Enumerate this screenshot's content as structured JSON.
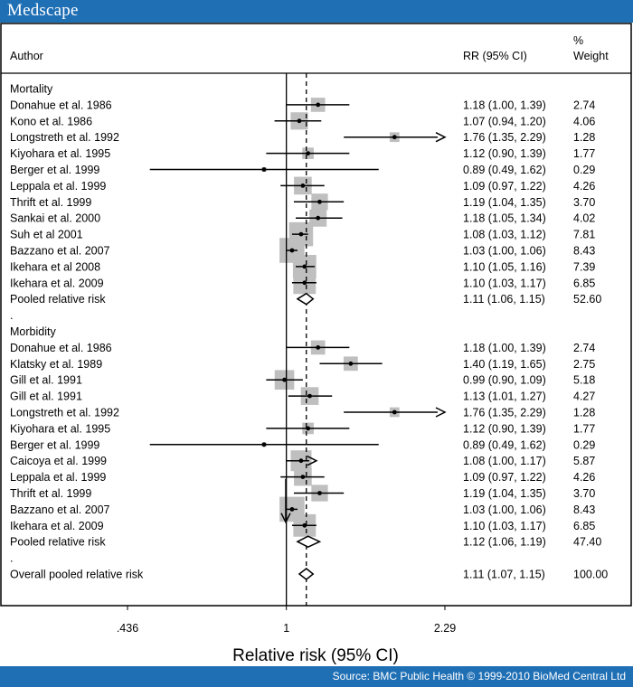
{
  "brand": {
    "logo": "Medscape",
    "source": "Source: BMC Public Health © 1999-2010 BioMed Central Ltd"
  },
  "colors": {
    "header": "#1f6fb5",
    "box": "#bfbfbf",
    "line": "#000000"
  },
  "chart_data": {
    "type": "forest",
    "xscale": "log",
    "xlim": [
      0.436,
      2.29
    ],
    "xticks": [
      ".436",
      "1",
      "2.29"
    ],
    "xlabel": "Relative risk (95% CI)",
    "null_value": 1,
    "overall_value": 1.11,
    "headers": {
      "author": "Author",
      "rr": "RR (95% CI)",
      "weight_top": "%",
      "weight": "Weight"
    },
    "rows": [
      {
        "kind": "group",
        "label": "Mortality"
      },
      {
        "kind": "study",
        "label": "Donahue et al. 1986",
        "rr": 1.18,
        "lo": 1.0,
        "hi": 1.39,
        "ci_text": "1.18 (1.00, 1.39)",
        "weight": "2.74"
      },
      {
        "kind": "study",
        "label": "Kono et al. 1986",
        "rr": 1.07,
        "lo": 0.94,
        "hi": 1.2,
        "ci_text": "1.07 (0.94, 1.20)",
        "weight": "4.06"
      },
      {
        "kind": "study",
        "label": "Longstreth et al. 1992",
        "rr": 1.76,
        "lo": 1.35,
        "hi": 2.29,
        "ci_text": "1.76 (1.35, 2.29)",
        "weight": "1.28",
        "arrow": "right"
      },
      {
        "kind": "study",
        "label": "Kiyohara et al. 1995",
        "rr": 1.12,
        "lo": 0.9,
        "hi": 1.39,
        "ci_text": "1.12 (0.90, 1.39)",
        "weight": "1.77"
      },
      {
        "kind": "study",
        "label": "Berger et al. 1999",
        "rr": 0.89,
        "lo": 0.49,
        "hi": 1.62,
        "ci_text": "0.89 (0.49, 1.62)",
        "weight": "0.29"
      },
      {
        "kind": "study",
        "label": "Leppala et al. 1999",
        "rr": 1.09,
        "lo": 0.97,
        "hi": 1.22,
        "ci_text": "1.09 (0.97, 1.22)",
        "weight": "4.26"
      },
      {
        "kind": "study",
        "label": "Thrift et al. 1999",
        "rr": 1.19,
        "lo": 1.04,
        "hi": 1.35,
        "ci_text": "1.19 (1.04, 1.35)",
        "weight": "3.70"
      },
      {
        "kind": "study",
        "label": "Sankai et al. 2000",
        "rr": 1.18,
        "lo": 1.05,
        "hi": 1.34,
        "ci_text": "1.18 (1.05, 1.34)",
        "weight": "4.02"
      },
      {
        "kind": "study",
        "label": "Suh et al 2001",
        "rr": 1.08,
        "lo": 1.03,
        "hi": 1.12,
        "ci_text": "1.08 (1.03, 1.12)",
        "weight": "7.81"
      },
      {
        "kind": "study",
        "label": "Bazzano et al. 2007",
        "rr": 1.03,
        "lo": 1.0,
        "hi": 1.06,
        "ci_text": "1.03 (1.00, 1.06)",
        "weight": "8.43"
      },
      {
        "kind": "study",
        "label": "Ikehara et al 2008",
        "rr": 1.1,
        "lo": 1.05,
        "hi": 1.16,
        "ci_text": "1.10 (1.05, 1.16)",
        "weight": "7.39"
      },
      {
        "kind": "study",
        "label": "Ikehara et al. 2009",
        "rr": 1.1,
        "lo": 1.03,
        "hi": 1.17,
        "ci_text": "1.10 (1.03, 1.17)",
        "weight": "6.85"
      },
      {
        "kind": "pooled",
        "label": "Pooled relative risk",
        "rr": 1.11,
        "lo": 1.06,
        "hi": 1.15,
        "ci_text": "1.11 (1.06, 1.15)",
        "weight": "52.60"
      },
      {
        "kind": "sep",
        "label": "."
      },
      {
        "kind": "group",
        "label": "Morbidity"
      },
      {
        "kind": "study",
        "label": "Donahue et al. 1986",
        "rr": 1.18,
        "lo": 1.0,
        "hi": 1.39,
        "ci_text": "1.18 (1.00, 1.39)",
        "weight": "2.74"
      },
      {
        "kind": "study",
        "label": "Klatsky et al. 1989",
        "rr": 1.4,
        "lo": 1.19,
        "hi": 1.65,
        "ci_text": "1.40 (1.19, 1.65)",
        "weight": "2.75"
      },
      {
        "kind": "study",
        "label": "Gill et al. 1991",
        "rr": 0.99,
        "lo": 0.9,
        "hi": 1.09,
        "ci_text": "0.99 (0.90, 1.09)",
        "weight": "5.18"
      },
      {
        "kind": "study",
        "label": "Gill et al. 1991",
        "rr": 1.13,
        "lo": 1.01,
        "hi": 1.27,
        "ci_text": "1.13 (1.01, 1.27)",
        "weight": "4.27"
      },
      {
        "kind": "study",
        "label": "Longstreth et al. 1992",
        "rr": 1.76,
        "lo": 1.35,
        "hi": 2.29,
        "ci_text": "1.76 (1.35, 2.29)",
        "weight": "1.28",
        "arrow": "right"
      },
      {
        "kind": "study",
        "label": "Kiyohara et al. 1995",
        "rr": 1.12,
        "lo": 0.9,
        "hi": 1.39,
        "ci_text": "1.12 (0.90, 1.39)",
        "weight": "1.77"
      },
      {
        "kind": "study",
        "label": "Berger et al. 1999",
        "rr": 0.89,
        "lo": 0.49,
        "hi": 1.62,
        "ci_text": "0.89 (0.49, 1.62)",
        "weight": "0.29"
      },
      {
        "kind": "study",
        "label": "Caicoya et al. 1999",
        "rr": 1.08,
        "lo": 1.0,
        "hi": 1.17,
        "ci_text": "1.08 (1.00, 1.17)",
        "weight": "5.87",
        "arrow": "right"
      },
      {
        "kind": "study",
        "label": "Leppala et al. 1999",
        "rr": 1.09,
        "lo": 0.97,
        "hi": 1.22,
        "ci_text": "1.09 (0.97, 1.22)",
        "weight": "4.26"
      },
      {
        "kind": "study",
        "label": "Thrift et al. 1999",
        "rr": 1.19,
        "lo": 1.04,
        "hi": 1.35,
        "ci_text": "1.19 (1.04, 1.35)",
        "weight": "3.70"
      },
      {
        "kind": "study",
        "label": "Bazzano et al. 2007",
        "rr": 1.03,
        "lo": 1.0,
        "hi": 1.06,
        "ci_text": "1.03 (1.00, 1.06)",
        "weight": "8.43"
      },
      {
        "kind": "study",
        "label": "Ikehara et al. 2009",
        "rr": 1.1,
        "lo": 1.03,
        "hi": 1.17,
        "ci_text": "1.10 (1.03, 1.17)",
        "weight": "6.85"
      },
      {
        "kind": "pooled",
        "label": "Pooled relative risk",
        "rr": 1.12,
        "lo": 1.06,
        "hi": 1.19,
        "ci_text": "1.12 (1.06, 1.19)",
        "weight": "47.40"
      },
      {
        "kind": "sep",
        "label": "."
      },
      {
        "kind": "pooled",
        "label": "Overall pooled relative risk",
        "rr": 1.11,
        "lo": 1.07,
        "hi": 1.15,
        "ci_text": "1.11 (1.07, 1.15)",
        "weight": "100.00"
      }
    ]
  }
}
